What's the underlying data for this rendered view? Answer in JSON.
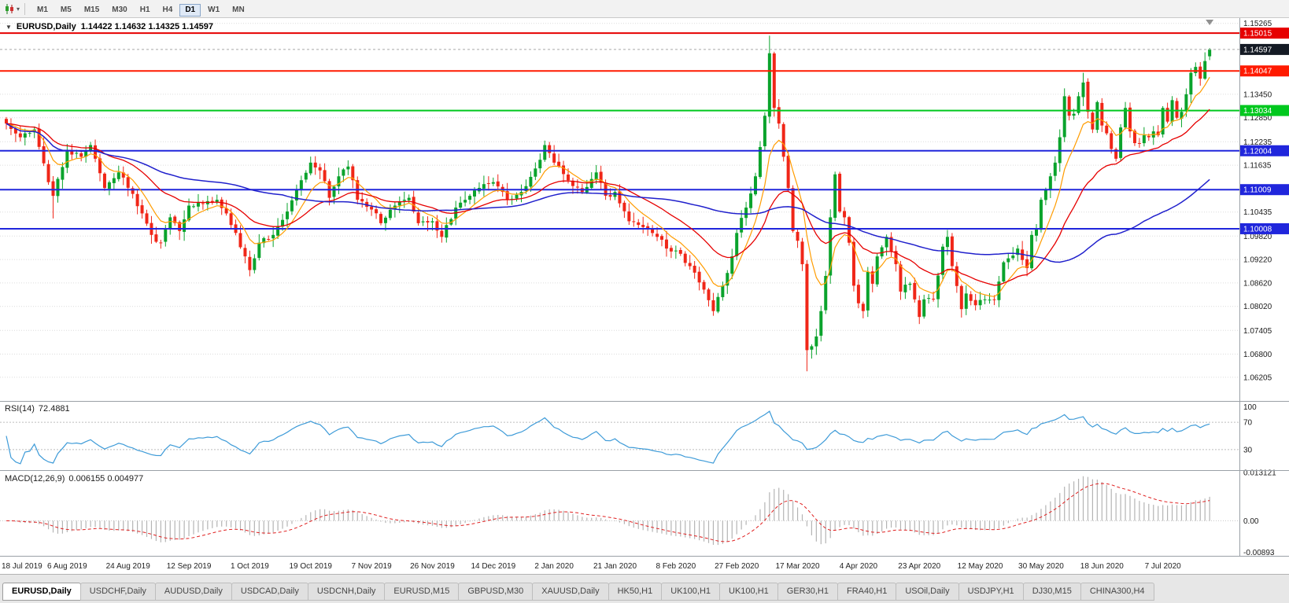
{
  "toolbar": {
    "timeframes": [
      {
        "label": "M1",
        "active": false
      },
      {
        "label": "M5",
        "active": false
      },
      {
        "label": "M15",
        "active": false
      },
      {
        "label": "M30",
        "active": false
      },
      {
        "label": "H1",
        "active": false
      },
      {
        "label": "H4",
        "active": false
      },
      {
        "label": "D1",
        "active": true
      },
      {
        "label": "W1",
        "active": false
      },
      {
        "label": "MN",
        "active": false
      }
    ]
  },
  "chart": {
    "title": "EURUSD,Daily",
    "ohlc": "1.14422 1.14632 1.14325 1.14597",
    "price_scale_labels": [
      "1.15265",
      "1.13450",
      "1.12850",
      "1.12235",
      "1.11635",
      "1.10435",
      "1.09820",
      "1.09220",
      "1.08620",
      "1.08020",
      "1.07405",
      "1.06800",
      "1.06205"
    ],
    "current_price": {
      "value": 1.14597,
      "label": "1.14597"
    },
    "hlines": [
      {
        "value": 1.15015,
        "label": "1.15015",
        "color": "#e60000"
      },
      {
        "value": 1.14047,
        "label": "1.14047",
        "color": "#ff1a00"
      },
      {
        "value": 1.13034,
        "label": "1.13034",
        "color": "#00c81e"
      },
      {
        "value": 1.12004,
        "label": "1.12004",
        "color": "#2026dc"
      },
      {
        "value": 1.11009,
        "label": "1.11009",
        "color": "#2026dc"
      },
      {
        "value": 1.10008,
        "label": "1.10008",
        "color": "#2026dc"
      }
    ]
  },
  "rsi": {
    "label": "RSI(14)",
    "value": "72.4881",
    "scale_labels": [
      {
        "v": 100,
        "t": "100"
      },
      {
        "v": 70,
        "t": "70"
      },
      {
        "v": 30,
        "t": "30"
      }
    ],
    "levels": [
      70,
      30
    ]
  },
  "macd": {
    "label": "MACD(12,26,9)",
    "values": "0.006155 0.004977",
    "scale_labels": [
      {
        "v": 0.013121,
        "t": "0.013121"
      },
      {
        "v": 0,
        "t": "0.00"
      },
      {
        "v": -0.00893,
        "t": "-0.00893"
      }
    ]
  },
  "x_axis": {
    "ticks": [
      {
        "i": 0,
        "label": "18 Jul 2019"
      },
      {
        "i": 13,
        "label": "6 Aug 2019"
      },
      {
        "i": 26,
        "label": "24 Aug 2019"
      },
      {
        "i": 39,
        "label": "12 Sep 2019"
      },
      {
        "i": 52,
        "label": "1 Oct 2019"
      },
      {
        "i": 65,
        "label": "19 Oct 2019"
      },
      {
        "i": 78,
        "label": "7 Nov 2019"
      },
      {
        "i": 91,
        "label": "26 Nov 2019"
      },
      {
        "i": 104,
        "label": "14 Dec 2019"
      },
      {
        "i": 117,
        "label": "2 Jan 2020"
      },
      {
        "i": 130,
        "label": "21 Jan 2020"
      },
      {
        "i": 143,
        "label": "8 Feb 2020"
      },
      {
        "i": 156,
        "label": "27 Feb 2020"
      },
      {
        "i": 169,
        "label": "17 Mar 2020"
      },
      {
        "i": 182,
        "label": "4 Apr 2020"
      },
      {
        "i": 195,
        "label": "23 Apr 2020"
      },
      {
        "i": 208,
        "label": "12 May 2020"
      },
      {
        "i": 221,
        "label": "30 May 2020"
      },
      {
        "i": 234,
        "label": "18 Jun 2020"
      },
      {
        "i": 247,
        "label": "7 Jul 2020"
      }
    ]
  },
  "tabs": [
    {
      "label": "EURUSD,Daily",
      "active": true
    },
    {
      "label": "USDCHF,Daily",
      "active": false
    },
    {
      "label": "AUDUSD,Daily",
      "active": false
    },
    {
      "label": "USDCAD,Daily",
      "active": false
    },
    {
      "label": "USDCNH,Daily",
      "active": false
    },
    {
      "label": "EURUSD,M15",
      "active": false
    },
    {
      "label": "GBPUSD,M30",
      "active": false
    },
    {
      "label": "XAUUSD,Daily",
      "active": false
    },
    {
      "label": "HK50,H1",
      "active": false
    },
    {
      "label": "UK100,H1",
      "active": false
    },
    {
      "label": "UK100,H1",
      "active": false
    },
    {
      "label": "GER30,H1",
      "active": false
    },
    {
      "label": "FRA40,H1",
      "active": false
    },
    {
      "label": "USOil,Daily",
      "active": false
    },
    {
      "label": "USDJPY,H1",
      "active": false
    },
    {
      "label": "DJ30,M15",
      "active": false
    },
    {
      "label": "CHINA300,H4",
      "active": false
    }
  ],
  "colors": {
    "candle_up": "#0aa32c",
    "candle_down": "#f02618",
    "grid": "#dcdcdc",
    "panel_border": "#9aa0a6",
    "axis_text": "#1a1a1a",
    "price_box_bg": "#141a24",
    "rsi_line": "#3e9bd8",
    "rsi_level": "#bcbcbc",
    "macd_hist": "#b4b4b4",
    "macd_signal": "#e02020",
    "ma_fast": "#ff9c00",
    "ma_mid": "#e60000",
    "ma_slow": "#2020cc",
    "bid_line": "#a8a8a8",
    "date_text": "#222222",
    "shift_marker": "#909090"
  },
  "chart_data": {
    "type": "candlestick",
    "symbol": "EURUSD",
    "timeframe": "Daily",
    "n_candles": 258,
    "y_range": [
      1.056,
      1.154
    ],
    "noise": 0.0016,
    "price_path_anchors": [
      [
        0,
        1.127
      ],
      [
        3,
        1.1235
      ],
      [
        6,
        1.1255
      ],
      [
        9,
        1.112
      ],
      [
        10,
        1.1085
      ],
      [
        13,
        1.12
      ],
      [
        16,
        1.1185
      ],
      [
        18,
        1.1215
      ],
      [
        21,
        1.1105
      ],
      [
        24,
        1.1145
      ],
      [
        27,
        1.109
      ],
      [
        29,
        1.104
      ],
      [
        31,
        1.0985
      ],
      [
        33,
        1.0965
      ],
      [
        35,
        1.103
      ],
      [
        37,
        1.0995
      ],
      [
        39,
        1.106
      ],
      [
        42,
        1.1065
      ],
      [
        45,
        1.1075
      ],
      [
        47,
        1.104
      ],
      [
        49,
        1.099
      ],
      [
        51,
        1.093
      ],
      [
        52,
        1.0895
      ],
      [
        54,
        1.0965
      ],
      [
        57,
        1.0985
      ],
      [
        60,
        1.1045
      ],
      [
        63,
        1.1125
      ],
      [
        65,
        1.117
      ],
      [
        67,
        1.115
      ],
      [
        69,
        1.108
      ],
      [
        71,
        1.1135
      ],
      [
        73,
        1.116
      ],
      [
        75,
        1.1075
      ],
      [
        78,
        1.105
      ],
      [
        80,
        1.1015
      ],
      [
        83,
        1.106
      ],
      [
        86,
        1.108
      ],
      [
        88,
        1.1015
      ],
      [
        91,
        1.102
      ],
      [
        93,
        1.098
      ],
      [
        96,
        1.1055
      ],
      [
        99,
        1.1085
      ],
      [
        102,
        1.1115
      ],
      [
        104,
        1.112
      ],
      [
        107,
        1.1075
      ],
      [
        110,
        1.1095
      ],
      [
        113,
        1.1155
      ],
      [
        115,
        1.1215
      ],
      [
        117,
        1.117
      ],
      [
        120,
        1.1125
      ],
      [
        123,
        1.1095
      ],
      [
        126,
        1.1145
      ],
      [
        128,
        1.1085
      ],
      [
        130,
        1.1095
      ],
      [
        133,
        1.102
      ],
      [
        136,
        1.1005
      ],
      [
        139,
        1.098
      ],
      [
        141,
        1.095
      ],
      [
        143,
        1.0945
      ],
      [
        146,
        1.0905
      ],
      [
        149,
        1.0845
      ],
      [
        151,
        1.079
      ],
      [
        153,
        1.0855
      ],
      [
        155,
        1.093
      ],
      [
        156,
        1.099
      ],
      [
        158,
        1.1055
      ],
      [
        160,
        1.1135
      ],
      [
        162,
        1.129
      ],
      [
        163,
        1.145
      ],
      [
        164,
        1.131
      ],
      [
        165,
        1.127
      ],
      [
        166,
        1.1185
      ],
      [
        167,
        1.1105
      ],
      [
        168,
        1.0995
      ],
      [
        169,
        1.097
      ],
      [
        170,
        1.091
      ],
      [
        171,
        1.069
      ],
      [
        172,
        1.07
      ],
      [
        173,
        1.0725
      ],
      [
        174,
        1.079
      ],
      [
        175,
        1.088
      ],
      [
        176,
        1.103
      ],
      [
        177,
        1.114
      ],
      [
        178,
        1.1045
      ],
      [
        179,
        1.103
      ],
      [
        180,
        1.0965
      ],
      [
        181,
        1.0855
      ],
      [
        182,
        1.081
      ],
      [
        183,
        1.079
      ],
      [
        184,
        1.089
      ],
      [
        185,
        1.086
      ],
      [
        186,
        1.093
      ],
      [
        188,
        1.098
      ],
      [
        190,
        1.091
      ],
      [
        191,
        1.084
      ],
      [
        193,
        1.086
      ],
      [
        194,
        1.082
      ],
      [
        195,
        1.0775
      ],
      [
        196,
        1.082
      ],
      [
        198,
        1.082
      ],
      [
        200,
        1.0955
      ],
      [
        201,
        1.098
      ],
      [
        202,
        1.0905
      ],
      [
        204,
        1.0795
      ],
      [
        205,
        1.0835
      ],
      [
        207,
        1.0805
      ],
      [
        209,
        1.082
      ],
      [
        211,
        1.082
      ],
      [
        213,
        1.0915
      ],
      [
        214,
        1.0925
      ],
      [
        216,
        1.095
      ],
      [
        218,
        1.09
      ],
      [
        219,
        1.0985
      ],
      [
        220,
        1.1
      ],
      [
        221,
        1.1075
      ],
      [
        222,
        1.11
      ],
      [
        223,
        1.1135
      ],
      [
        224,
        1.117
      ],
      [
        225,
        1.1235
      ],
      [
        226,
        1.134
      ],
      [
        227,
        1.129
      ],
      [
        228,
        1.1295
      ],
      [
        229,
        1.134
      ],
      [
        230,
        1.1375
      ],
      [
        231,
        1.13
      ],
      [
        232,
        1.1255
      ],
      [
        233,
        1.1325
      ],
      [
        234,
        1.1265
      ],
      [
        235,
        1.1245
      ],
      [
        236,
        1.1205
      ],
      [
        237,
        1.118
      ],
      [
        238,
        1.126
      ],
      [
        239,
        1.131
      ],
      [
        240,
        1.125
      ],
      [
        241,
        1.122
      ],
      [
        242,
        1.122
      ],
      [
        243,
        1.124
      ],
      [
        244,
        1.1235
      ],
      [
        245,
        1.125
      ],
      [
        246,
        1.124
      ],
      [
        247,
        1.131
      ],
      [
        248,
        1.1275
      ],
      [
        249,
        1.133
      ],
      [
        250,
        1.1285
      ],
      [
        251,
        1.13
      ],
      [
        252,
        1.1345
      ],
      [
        253,
        1.14
      ],
      [
        254,
        1.1415
      ],
      [
        255,
        1.1385
      ],
      [
        256,
        1.143
      ],
      [
        257,
        1.146
      ]
    ],
    "wick_overrides": [
      {
        "i": 10,
        "low": 1.1027
      },
      {
        "i": 52,
        "low": 1.0879
      },
      {
        "i": 151,
        "low": 1.0778
      },
      {
        "i": 163,
        "high": 1.1495
      },
      {
        "i": 171,
        "low": 1.0636
      },
      {
        "i": 230,
        "high": 1.14
      }
    ],
    "last_candle": {
      "open": 1.14422,
      "high": 1.14632,
      "low": 1.14325,
      "close": 1.14597
    },
    "indicators": {
      "moving_averages": [
        {
          "name": "ma-fast",
          "period": 8,
          "type": "ema"
        },
        {
          "name": "ma-mid",
          "period": 24,
          "type": "ema"
        },
        {
          "name": "ma-slow",
          "period": 60,
          "type": "sma"
        }
      ],
      "rsi": {
        "period": 14,
        "current": 72.4881,
        "range": [
          0,
          100
        ],
        "levels": [
          70,
          30
        ]
      },
      "macd": {
        "fast": 12,
        "slow": 26,
        "signal": 9,
        "current_macd": 0.006155,
        "current_signal": 0.004977,
        "range": [
          -0.0095,
          0.0135
        ]
      }
    }
  }
}
